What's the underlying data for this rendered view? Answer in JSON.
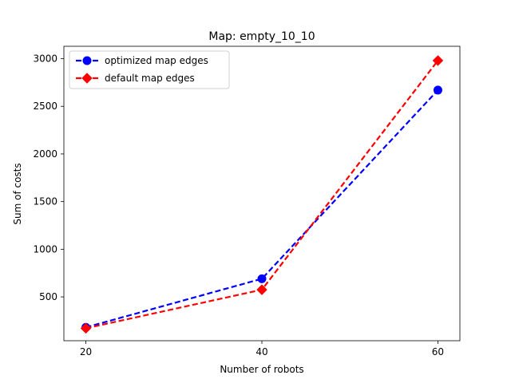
{
  "chart_data": {
    "type": "line",
    "title": "Map: empty_10_10",
    "xlabel": "Number of robots",
    "ylabel": "Sum of costs",
    "x": [
      20,
      40,
      60
    ],
    "xticks": [
      20,
      40,
      60
    ],
    "yticks": [
      500,
      1000,
      1500,
      2000,
      2500,
      3000
    ],
    "xlim": [
      17.5,
      62.5
    ],
    "ylim": [
      40,
      3130
    ],
    "grid": false,
    "legend_position": "upper-left",
    "series": [
      {
        "name": "optimized map edges",
        "values": [
          180,
          690,
          2670
        ],
        "color": "#0000ff",
        "marker": "circle",
        "linestyle": "dashed"
      },
      {
        "name": "default map edges",
        "values": [
          170,
          575,
          2980
        ],
        "color": "#ff0000",
        "marker": "diamond",
        "linestyle": "dashed"
      }
    ]
  }
}
